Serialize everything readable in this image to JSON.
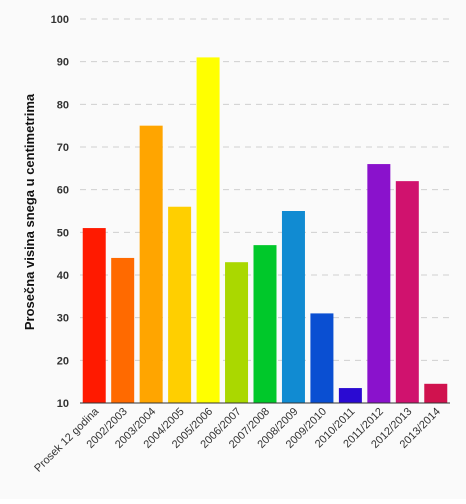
{
  "chart_data": {
    "type": "bar",
    "title": "",
    "xlabel": "",
    "ylabel": "Prosečna visina snega u centimetrima",
    "ylim": [
      10,
      100
    ],
    "yticks": [
      10,
      20,
      30,
      40,
      50,
      60,
      70,
      80,
      90,
      100
    ],
    "grid": true,
    "categories": [
      "Prosek 12 godina",
      "2002/2003",
      "2003/2004",
      "2004/2005",
      "2005/2006",
      "2006/2007",
      "2007/2008",
      "2008/2009",
      "2009/2010",
      "2010/2011",
      "2011/2012",
      "2012/2013",
      "2013/2014"
    ],
    "values": [
      51,
      44,
      75,
      56,
      91,
      43,
      47,
      55,
      31,
      13.5,
      66,
      62,
      14.5
    ],
    "colors": [
      "#ff1a00",
      "#ff6a00",
      "#ffa500",
      "#ffcf00",
      "#ffff00",
      "#aad800",
      "#00c82a",
      "#118bd2",
      "#0a4fd2",
      "#2a0ad2",
      "#8a12cc",
      "#d0126e",
      "#d0124e"
    ]
  }
}
